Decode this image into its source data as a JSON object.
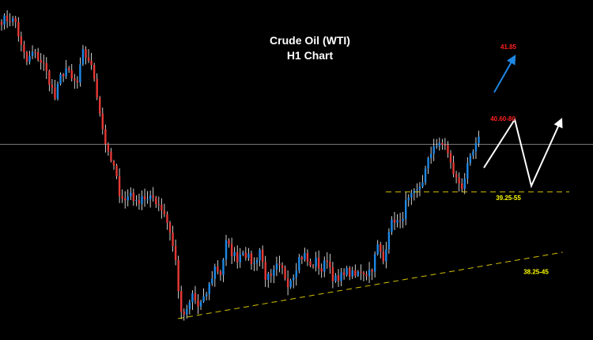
{
  "chart_data": {
    "type": "candlestick",
    "title": "Crude Oil (WTI)",
    "subtitle": "H1 Chart",
    "background": "#000000",
    "colors": {
      "up": "#1e88e5",
      "down": "#e53935",
      "wick": "#ffffff",
      "support_line": "#d4c000",
      "current_price_line": "#8a8a8a",
      "target_arrow": "#1e88e5",
      "projection_path": "#ffffff",
      "label_red": "#ff2020",
      "label_yellow": "#ffff00"
    },
    "current_price": 40.34,
    "ylim": [
      37.2,
      42.6
    ],
    "levels": [
      {
        "label": "41.85",
        "value": 41.85,
        "color": "red"
      },
      {
        "label": "40.60-80",
        "value": 40.7,
        "color": "red"
      },
      {
        "label": "39.25-55",
        "value": 39.4,
        "color": "yellow"
      },
      {
        "label": "38.25-45",
        "value": 38.35,
        "color": "yellow"
      }
    ],
    "horizontal_support": 39.55,
    "rising_trendline": [
      [
        0,
        37.45
      ],
      [
        193,
        38.55
      ]
    ],
    "projection_path": [
      [
        0,
        39.95
      ],
      [
        1,
        40.75
      ],
      [
        2,
        39.65
      ],
      [
        3,
        40.75
      ]
    ],
    "upside_path": [
      [
        0,
        41.2
      ],
      [
        1,
        41.85
      ]
    ],
    "price_path": [
      [
        0,
        42.4
      ],
      [
        3,
        42.42
      ],
      [
        5,
        42.36
      ],
      [
        7,
        41.95
      ],
      [
        9,
        41.7
      ],
      [
        11,
        41.85
      ],
      [
        13,
        41.78
      ],
      [
        15,
        41.65
      ],
      [
        17,
        41.4
      ],
      [
        19,
        41.1
      ],
      [
        21,
        41.45
      ],
      [
        23,
        41.6
      ],
      [
        25,
        41.4
      ],
      [
        27,
        41.35
      ],
      [
        29,
        41.85
      ],
      [
        31,
        41.75
      ],
      [
        33,
        41.45
      ],
      [
        36,
        40.6
      ],
      [
        38,
        40.15
      ],
      [
        40,
        39.95
      ],
      [
        42,
        39.55
      ],
      [
        44,
        39.4
      ],
      [
        46,
        39.55
      ],
      [
        48,
        39.35
      ],
      [
        50,
        39.5
      ],
      [
        52,
        39.4
      ],
      [
        54,
        39.45
      ],
      [
        56,
        39.35
      ],
      [
        58,
        39.2
      ],
      [
        60,
        38.9
      ],
      [
        62,
        38.4
      ],
      [
        63,
        37.95
      ],
      [
        64,
        37.5
      ],
      [
        66,
        37.55
      ],
      [
        68,
        37.85
      ],
      [
        70,
        37.65
      ],
      [
        72,
        37.75
      ],
      [
        74,
        38.0
      ],
      [
        76,
        38.3
      ],
      [
        78,
        38.2
      ],
      [
        80,
        38.7
      ],
      [
        82,
        38.55
      ],
      [
        84,
        38.45
      ],
      [
        86,
        38.6
      ],
      [
        88,
        38.45
      ],
      [
        90,
        38.35
      ],
      [
        92,
        38.6
      ],
      [
        94,
        38.15
      ],
      [
        96,
        38.1
      ],
      [
        98,
        38.3
      ],
      [
        100,
        38.25
      ],
      [
        102,
        38.05
      ],
      [
        104,
        38.2
      ],
      [
        106,
        38.45
      ],
      [
        108,
        38.5
      ],
      [
        110,
        38.3
      ],
      [
        112,
        38.4
      ],
      [
        114,
        38.25
      ],
      [
        116,
        38.45
      ],
      [
        118,
        38.15
      ],
      [
        120,
        38.05
      ],
      [
        122,
        38.25
      ],
      [
        124,
        38.2
      ],
      [
        126,
        38.15
      ],
      [
        128,
        38.25
      ],
      [
        130,
        38.2
      ],
      [
        132,
        38.3
      ],
      [
        134,
        38.65
      ],
      [
        136,
        38.4
      ],
      [
        138,
        38.95
      ],
      [
        140,
        39.1
      ],
      [
        142,
        39.0
      ],
      [
        144,
        39.35
      ],
      [
        146,
        39.45
      ],
      [
        148,
        39.55
      ],
      [
        150,
        39.75
      ],
      [
        152,
        40.05
      ],
      [
        154,
        40.35
      ],
      [
        156,
        40.3
      ],
      [
        158,
        40.35
      ],
      [
        160,
        40.0
      ],
      [
        162,
        39.75
      ],
      [
        164,
        39.65
      ],
      [
        166,
        39.95
      ],
      [
        168,
        40.2
      ],
      [
        170,
        40.4
      ]
    ]
  }
}
